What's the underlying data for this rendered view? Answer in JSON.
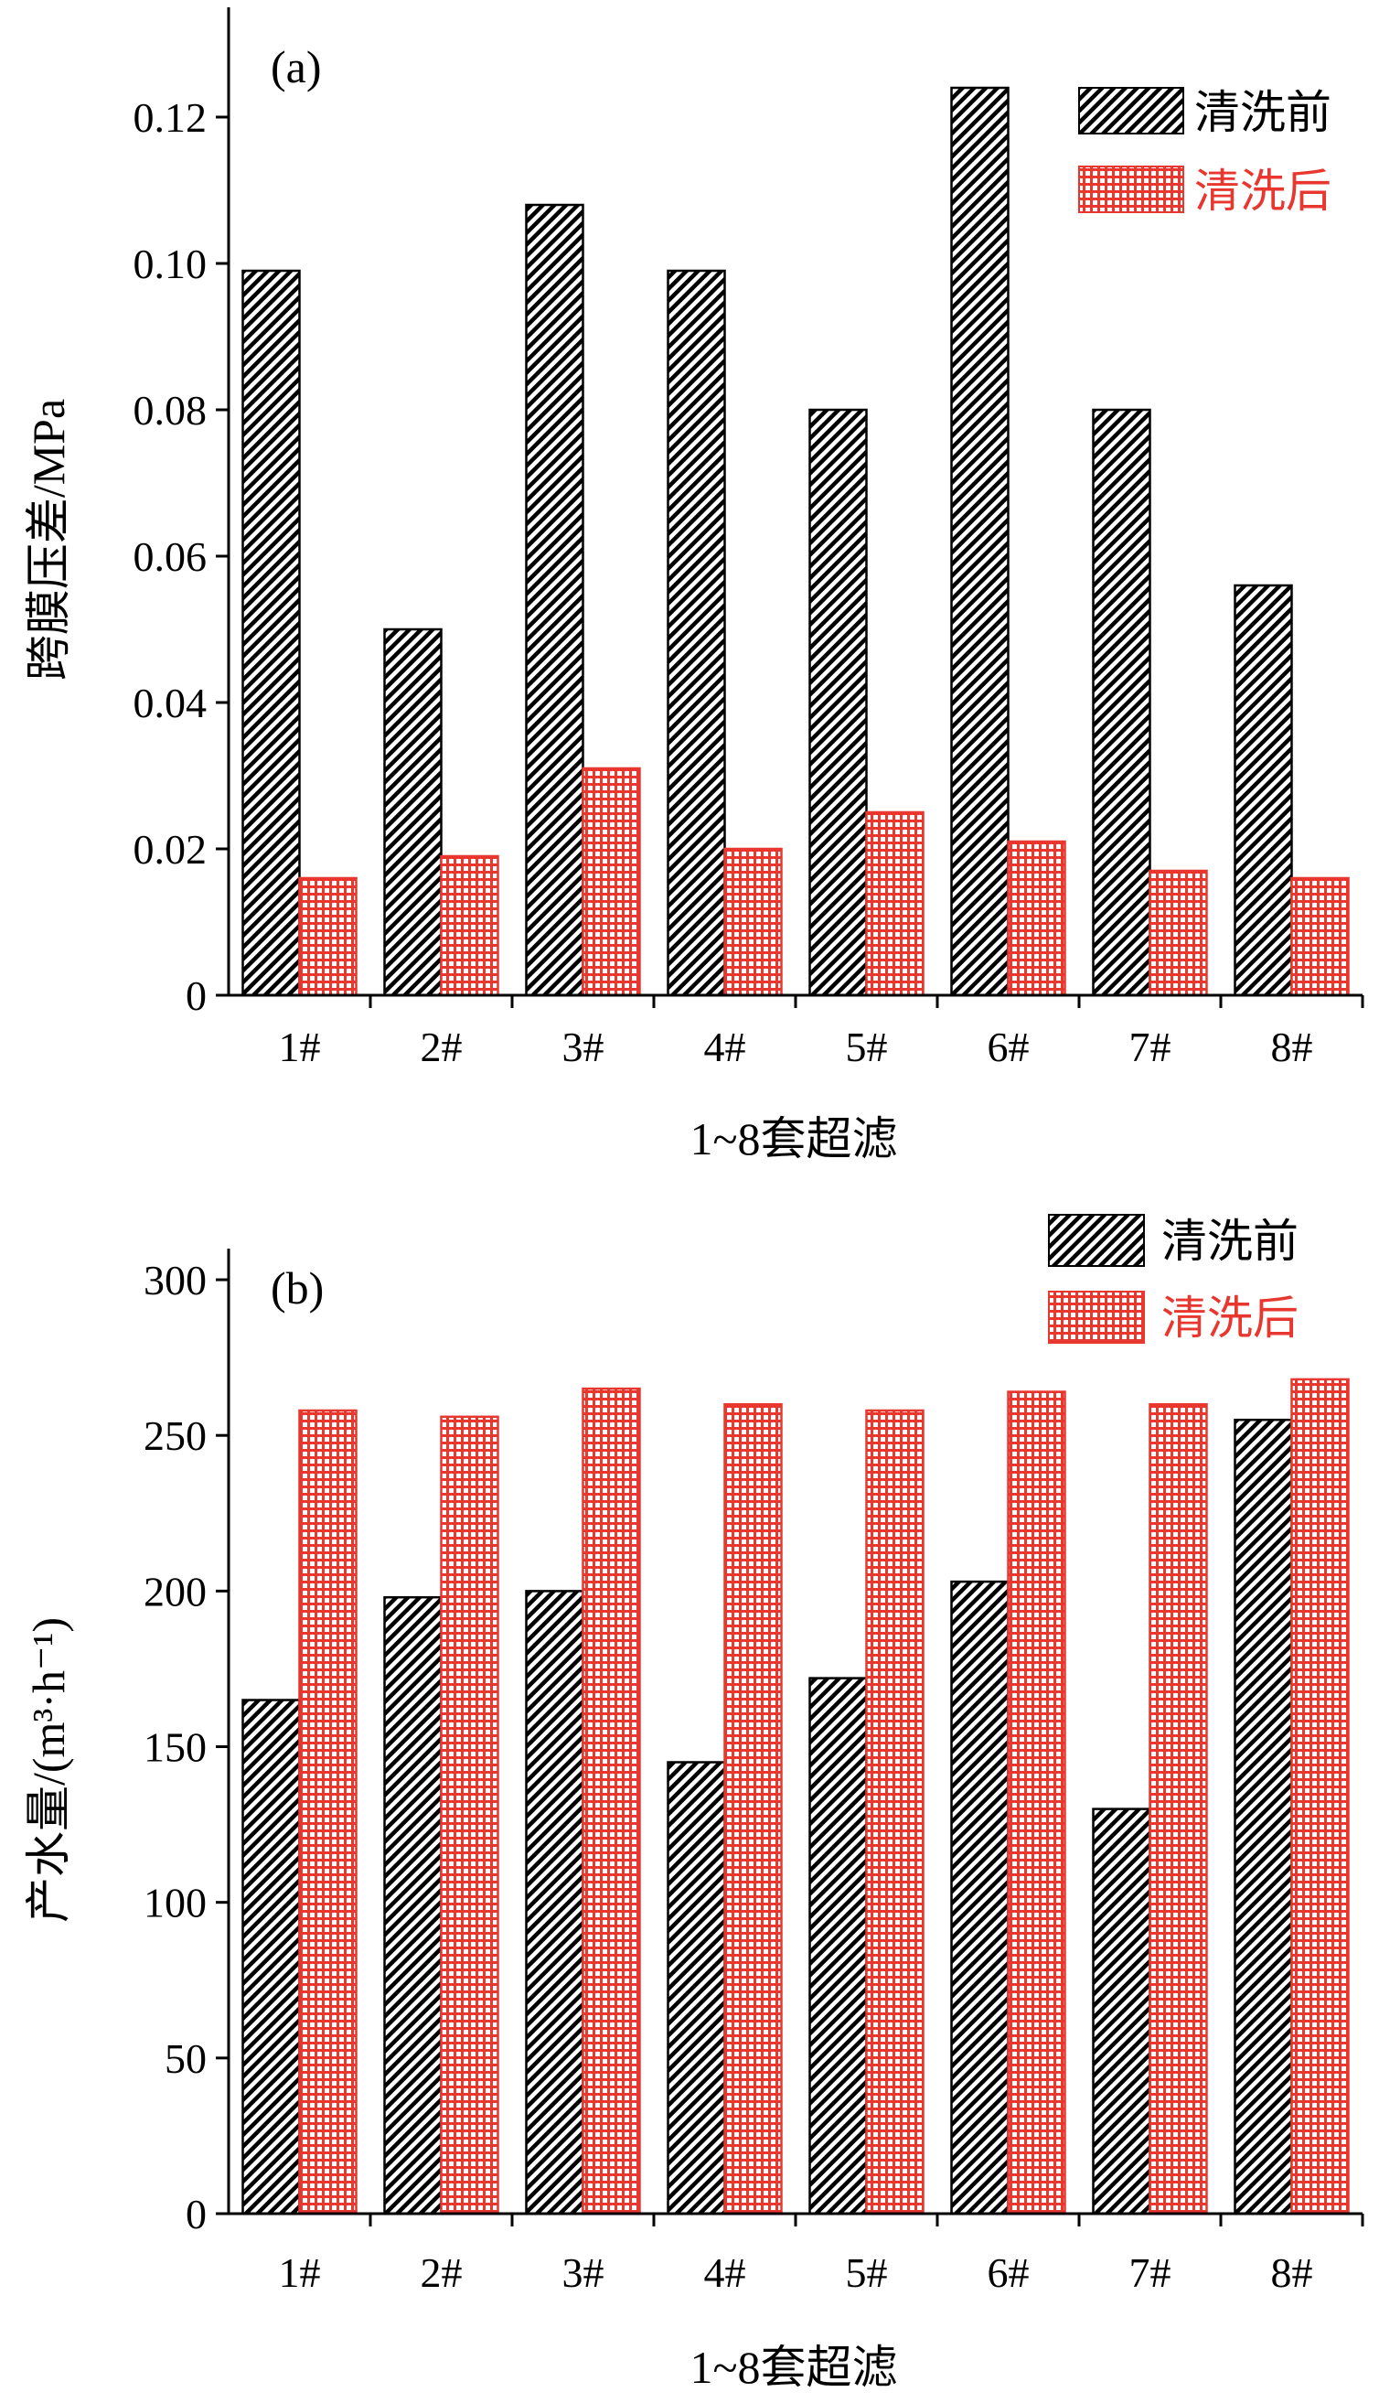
{
  "chart_data": [
    {
      "type": "bar",
      "panel_label": "(a)",
      "categories": [
        "1#",
        "2#",
        "3#",
        "4#",
        "5#",
        "6#",
        "7#",
        "8#"
      ],
      "series": [
        {
          "name": "清洗前",
          "values": [
            0.099,
            0.05,
            0.108,
            0.099,
            0.08,
            0.124,
            0.08,
            0.056
          ],
          "color": "#000000",
          "pattern": "diagonal-hatch"
        },
        {
          "name": "清洗后",
          "values": [
            0.016,
            0.019,
            0.031,
            0.02,
            0.025,
            0.021,
            0.017,
            0.016
          ],
          "color": "#e8372f",
          "pattern": "grid"
        }
      ],
      "xlabel": "1~8套超滤",
      "ylabel": "跨膜压差/MPa",
      "ylim": [
        0,
        0.135
      ],
      "yticks": [
        0,
        0.02,
        0.04,
        0.06,
        0.08,
        0.1,
        0.12
      ],
      "ytick_labels": [
        "0",
        "0.02",
        "0.04",
        "0.06",
        "0.08",
        "0.10",
        "0.12"
      ],
      "legend": "top-right",
      "grid": false
    },
    {
      "type": "bar",
      "panel_label": "(b)",
      "categories": [
        "1#",
        "2#",
        "3#",
        "4#",
        "5#",
        "6#",
        "7#",
        "8#"
      ],
      "series": [
        {
          "name": "清洗前",
          "values": [
            165,
            198,
            200,
            145,
            172,
            203,
            130,
            255
          ],
          "color": "#000000",
          "pattern": "diagonal-hatch"
        },
        {
          "name": "清洗后",
          "values": [
            258,
            256,
            265,
            260,
            258,
            264,
            260,
            268
          ],
          "color": "#e8372f",
          "pattern": "grid"
        }
      ],
      "xlabel": "1~8套超滤",
      "ylabel": "产水量/(m³·h⁻¹)",
      "ylim": [
        0,
        310
      ],
      "yticks": [
        0,
        50,
        100,
        150,
        200,
        250,
        300
      ],
      "ytick_labels": [
        "0",
        "50",
        "100",
        "150",
        "200",
        "250",
        "300"
      ],
      "legend": "top-right",
      "grid": false
    }
  ]
}
